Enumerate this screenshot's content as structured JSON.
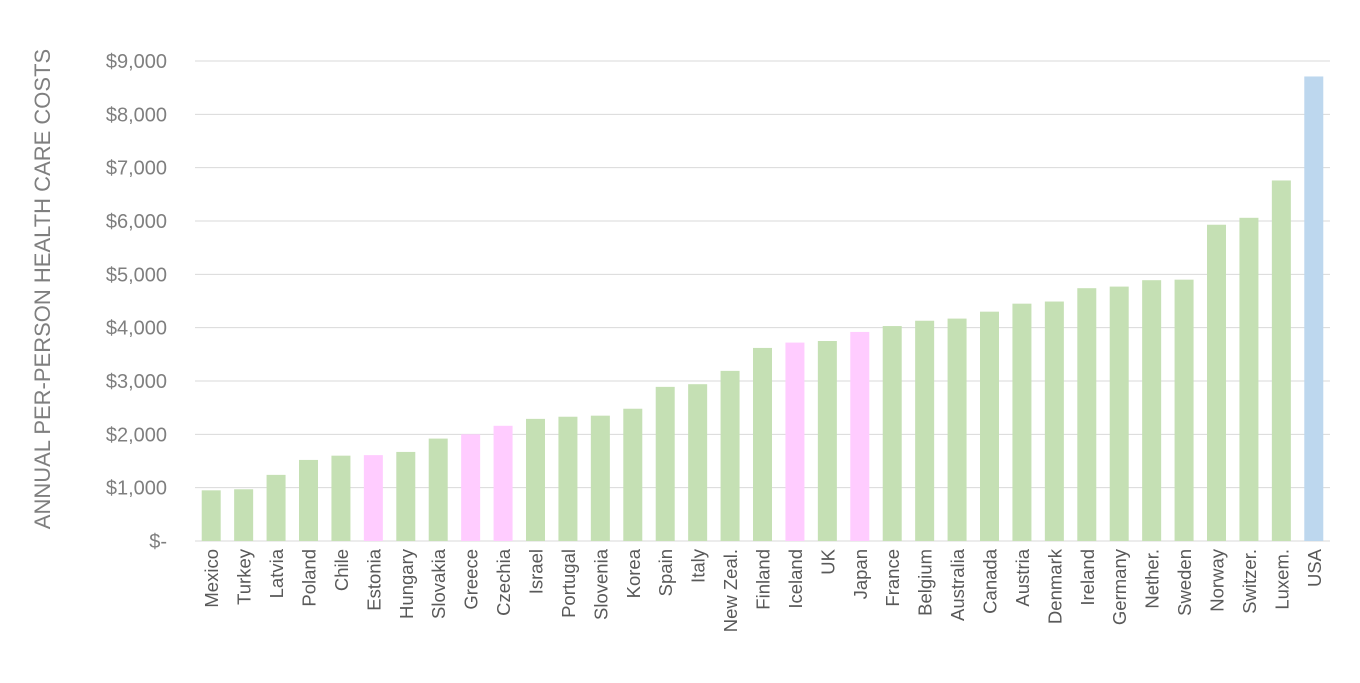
{
  "chart_data": {
    "type": "bar",
    "title": "",
    "xlabel": "",
    "ylabel": "ANNUAL PER-PERSON HEALTH CARE COSTS",
    "ylim": [
      0,
      9000
    ],
    "grid": true,
    "legend": "none",
    "y_ticks": [
      {
        "value": 0,
        "label": "$-"
      },
      {
        "value": 1000,
        "label": "$1,000"
      },
      {
        "value": 2000,
        "label": "$2,000"
      },
      {
        "value": 3000,
        "label": "$3,000"
      },
      {
        "value": 4000,
        "label": "$4,000"
      },
      {
        "value": 5000,
        "label": "$5,000"
      },
      {
        "value": 6000,
        "label": "$6,000"
      },
      {
        "value": 7000,
        "label": "$7,000"
      },
      {
        "value": 8000,
        "label": "$8,000"
      },
      {
        "value": 9000,
        "label": "$9,000"
      }
    ],
    "colors": {
      "green": "#c5e0b4",
      "pink": "#ffccff",
      "blue": "#bdd7ee"
    },
    "bars": [
      {
        "category": "Mexico",
        "value": 950,
        "color": "green"
      },
      {
        "category": "Turkey",
        "value": 970,
        "color": "green"
      },
      {
        "category": "Latvia",
        "value": 1240,
        "color": "green"
      },
      {
        "category": "Poland",
        "value": 1520,
        "color": "green"
      },
      {
        "category": "Chile",
        "value": 1600,
        "color": "green"
      },
      {
        "category": "Estonia",
        "value": 1610,
        "color": "pink"
      },
      {
        "category": "Hungary",
        "value": 1670,
        "color": "green"
      },
      {
        "category": "Slovakia",
        "value": 1920,
        "color": "green"
      },
      {
        "category": "Greece",
        "value": 2000,
        "color": "pink"
      },
      {
        "category": "Czechia",
        "value": 2160,
        "color": "pink"
      },
      {
        "category": "Israel",
        "value": 2290,
        "color": "green"
      },
      {
        "category": "Portugal",
        "value": 2330,
        "color": "green"
      },
      {
        "category": "Slovenia",
        "value": 2350,
        "color": "green"
      },
      {
        "category": "Korea",
        "value": 2480,
        "color": "green"
      },
      {
        "category": "Spain",
        "value": 2890,
        "color": "green"
      },
      {
        "category": "Italy",
        "value": 2940,
        "color": "green"
      },
      {
        "category": "New Zeal.",
        "value": 3190,
        "color": "green"
      },
      {
        "category": "Finland",
        "value": 3620,
        "color": "green"
      },
      {
        "category": "Iceland",
        "value": 3720,
        "color": "pink"
      },
      {
        "category": "UK",
        "value": 3750,
        "color": "green"
      },
      {
        "category": "Japan",
        "value": 3920,
        "color": "pink"
      },
      {
        "category": "France",
        "value": 4030,
        "color": "green"
      },
      {
        "category": "Belgium",
        "value": 4130,
        "color": "green"
      },
      {
        "category": "Australia",
        "value": 4170,
        "color": "green"
      },
      {
        "category": "Canada",
        "value": 4300,
        "color": "green"
      },
      {
        "category": "Austria",
        "value": 4450,
        "color": "green"
      },
      {
        "category": "Denmark",
        "value": 4490,
        "color": "green"
      },
      {
        "category": "Ireland",
        "value": 4740,
        "color": "green"
      },
      {
        "category": "Germany",
        "value": 4770,
        "color": "green"
      },
      {
        "category": "Nether.",
        "value": 4890,
        "color": "green"
      },
      {
        "category": "Sweden",
        "value": 4900,
        "color": "green"
      },
      {
        "category": "Norway",
        "value": 5930,
        "color": "green"
      },
      {
        "category": "Switzer.",
        "value": 6060,
        "color": "green"
      },
      {
        "category": "Luxem.",
        "value": 6760,
        "color": "green"
      },
      {
        "category": "USA",
        "value": 8710,
        "color": "blue"
      }
    ]
  }
}
